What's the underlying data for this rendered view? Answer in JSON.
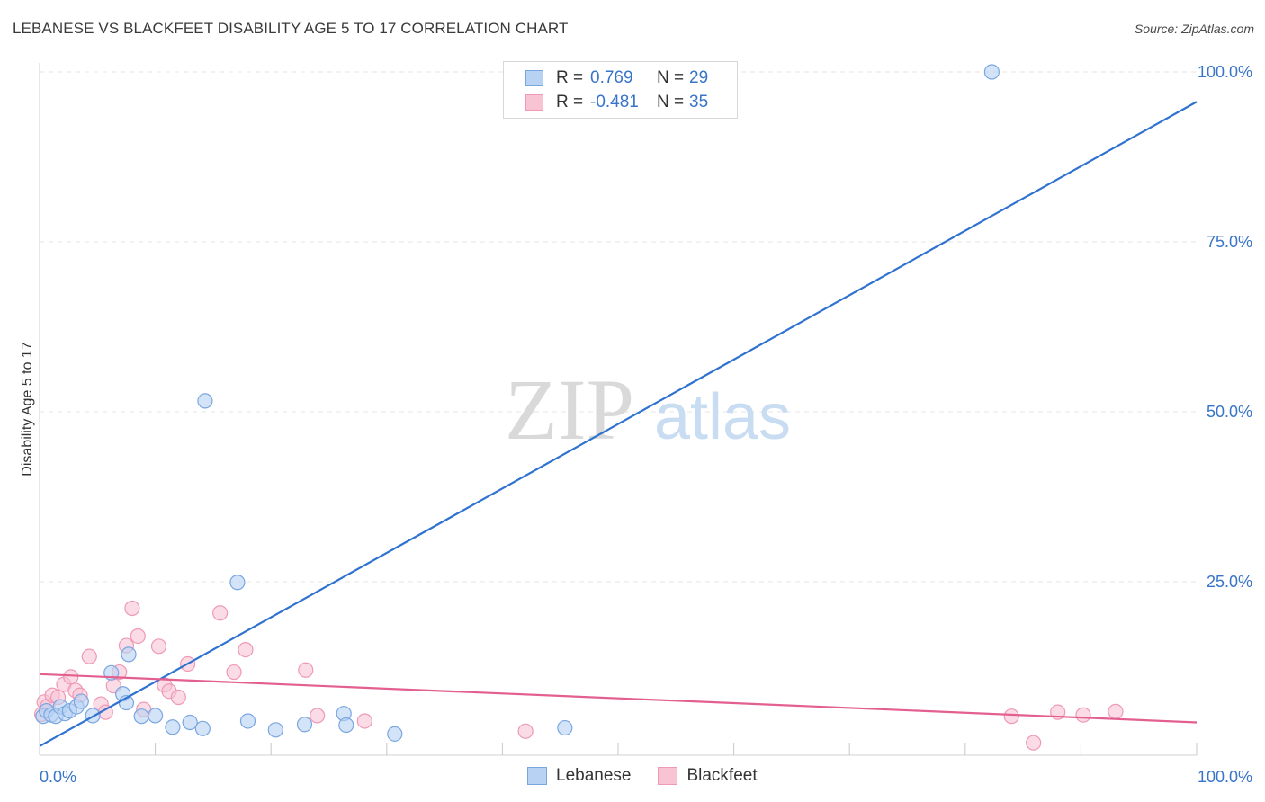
{
  "header": {
    "title": "LEBANESE VS BLACKFEET DISABILITY AGE 5 TO 17 CORRELATION CHART",
    "source": "Source: ZipAtlas.com"
  },
  "watermark": {
    "zip": "ZIP",
    "atlas": "atlas"
  },
  "legend": {
    "rows": [
      {
        "r_label": "R =",
        "r_value": "0.769",
        "n_label": "N =",
        "n_value": "29"
      },
      {
        "r_label": "R =",
        "r_value": "-0.481",
        "n_label": "N =",
        "n_value": "35"
      }
    ],
    "bottom": [
      "Lebanese",
      "Blackfeet"
    ]
  },
  "colors": {
    "lebanese_fill": "#b8d2f3",
    "lebanese_stroke": "#7aa6e0",
    "lebanese_line": "#2f72d0",
    "blackfeet_fill": "#f8c3d3",
    "blackfeet_stroke": "#ee9ab5",
    "blackfeet_line": "#e35f8f",
    "tick_label": "#3874c8"
  },
  "chart_data": {
    "type": "scatter",
    "title": "LEBANESE VS BLACKFEET DISABILITY AGE 5 TO 17 CORRELATION CHART",
    "xlabel": "",
    "ylabel": "Disability Age 5 to 17",
    "xlim": [
      0,
      100
    ],
    "ylim": [
      0,
      100
    ],
    "x_tick_labels": [
      "0.0%",
      "100.0%"
    ],
    "y_ticks": [
      25,
      50,
      75,
      100
    ],
    "y_tick_labels": [
      "25.0%",
      "50.0%",
      "75.0%",
      "100.0%"
    ],
    "grid": true,
    "series": [
      {
        "name": "Lebanese",
        "r": 0.769,
        "n": 29,
        "trend": {
          "x": [
            0,
            100
          ],
          "y": [
            0.8,
            95.6
          ]
        },
        "points": [
          [
            0.3,
            5.2
          ],
          [
            0.6,
            6.0
          ],
          [
            1.0,
            5.4
          ],
          [
            1.4,
            5.2
          ],
          [
            1.8,
            6.6
          ],
          [
            2.2,
            5.6
          ],
          [
            2.6,
            6.0
          ],
          [
            3.2,
            6.6
          ],
          [
            3.6,
            7.4
          ],
          [
            4.6,
            5.3
          ],
          [
            6.2,
            11.6
          ],
          [
            7.2,
            8.5
          ],
          [
            7.5,
            7.2
          ],
          [
            7.7,
            14.3
          ],
          [
            8.8,
            5.2
          ],
          [
            10.0,
            5.3
          ],
          [
            11.5,
            3.6
          ],
          [
            13.0,
            4.3
          ],
          [
            14.1,
            3.4
          ],
          [
            14.3,
            51.6
          ],
          [
            17.1,
            24.9
          ],
          [
            18.0,
            4.5
          ],
          [
            20.4,
            3.2
          ],
          [
            22.9,
            4.0
          ],
          [
            26.3,
            5.6
          ],
          [
            26.5,
            3.9
          ],
          [
            30.7,
            2.6
          ],
          [
            45.4,
            3.5
          ],
          [
            82.3,
            100.0
          ]
        ]
      },
      {
        "name": "Blackfeet",
        "r": -0.481,
        "n": 35,
        "trend": {
          "x": [
            0,
            100
          ],
          "y": [
            11.4,
            4.3
          ]
        },
        "points": [
          [
            0.2,
            5.5
          ],
          [
            0.4,
            7.3
          ],
          [
            0.7,
            6.7
          ],
          [
            1.1,
            8.3
          ],
          [
            1.6,
            8.0
          ],
          [
            2.1,
            9.9
          ],
          [
            2.7,
            11.0
          ],
          [
            3.1,
            9.0
          ],
          [
            3.5,
            8.3
          ],
          [
            4.3,
            14.0
          ],
          [
            5.3,
            7.0
          ],
          [
            5.7,
            5.8
          ],
          [
            6.4,
            9.7
          ],
          [
            6.9,
            11.7
          ],
          [
            7.5,
            15.6
          ],
          [
            8.0,
            21.1
          ],
          [
            8.5,
            17.0
          ],
          [
            9.0,
            6.2
          ],
          [
            10.3,
            15.5
          ],
          [
            10.8,
            9.8
          ],
          [
            11.2,
            8.9
          ],
          [
            12.0,
            8.0
          ],
          [
            12.8,
            12.9
          ],
          [
            15.6,
            20.4
          ],
          [
            16.8,
            11.7
          ],
          [
            17.8,
            15.0
          ],
          [
            23.0,
            12.0
          ],
          [
            24.0,
            5.3
          ],
          [
            28.1,
            4.5
          ],
          [
            42.0,
            3.0
          ],
          [
            84.0,
            5.2
          ],
          [
            85.9,
            1.3
          ],
          [
            88.0,
            5.8
          ],
          [
            90.2,
            5.4
          ],
          [
            93.0,
            5.9
          ]
        ]
      }
    ]
  }
}
